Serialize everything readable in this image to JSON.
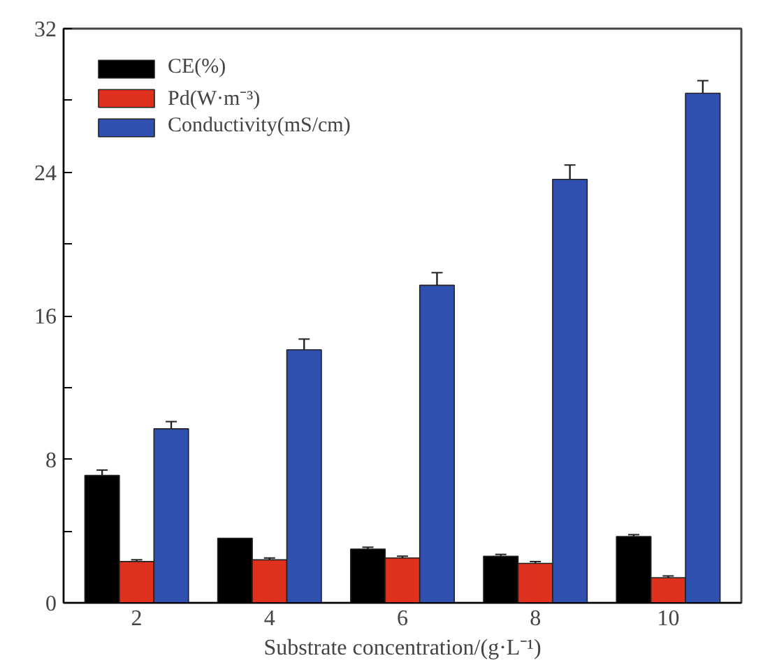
{
  "chart_data": {
    "type": "bar",
    "xlabel": "Substrate concentration/(g·L⁻¹)",
    "categories": [
      "2",
      "4",
      "6",
      "8",
      "10"
    ],
    "series": [
      {
        "name": "CE(%)",
        "color": "#000000",
        "values": [
          7.1,
          3.6,
          3.0,
          2.6,
          3.7
        ],
        "errors": [
          0.3,
          null,
          0.1,
          0.1,
          0.1
        ]
      },
      {
        "name": "Pd(W·m⁻³)",
        "color": "#e0301e",
        "values": [
          2.3,
          2.4,
          2.5,
          2.2,
          1.4
        ],
        "errors": [
          0.1,
          0.1,
          0.1,
          0.1,
          0.1
        ]
      },
      {
        "name": "Conductivity(mS/cm)",
        "color": "#3050b0",
        "values": [
          9.7,
          14.1,
          17.7,
          23.6,
          28.4
        ],
        "errors": [
          0.4,
          0.6,
          0.7,
          0.8,
          0.7
        ]
      }
    ],
    "ylim": [
      0,
      32
    ],
    "yticks": [
      0,
      {
        "value": 4,
        "label": null
      },
      8,
      {
        "value": 12,
        "label": null
      },
      16,
      {
        "value": 20,
        "label": null
      },
      24,
      {
        "value": 28,
        "label": null
      },
      32
    ],
    "legend": "top left",
    "grid": false
  }
}
